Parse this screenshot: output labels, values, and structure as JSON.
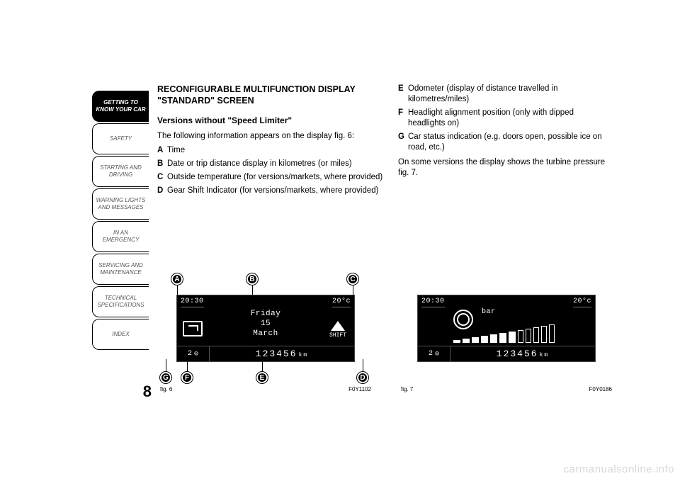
{
  "sidebar": {
    "items": [
      {
        "label": "GETTING TO KNOW YOUR CAR",
        "active": true
      },
      {
        "label": "SAFETY",
        "active": false
      },
      {
        "label": "STARTING AND DRIVING",
        "active": false
      },
      {
        "label": "WARNING LIGHTS AND MESSAGES",
        "active": false
      },
      {
        "label": "IN AN EMERGENCY",
        "active": false
      },
      {
        "label": "SERVICING AND MAINTENANCE",
        "active": false
      },
      {
        "label": "TECHNICAL SPECIFICATIONS",
        "active": false
      },
      {
        "label": "INDEX",
        "active": false
      }
    ]
  },
  "page_number": "8",
  "left": {
    "heading": "RECONFIGURABLE MULTIFUNCTION DISPLAY \"STANDARD\" SCREEN",
    "subheading": "Versions without \"Speed Limiter\"",
    "intro": "The following information appears on the display fig. 6:",
    "items": [
      {
        "letter": "A",
        "text": "Time"
      },
      {
        "letter": "B",
        "text": "Date or trip distance display in kilometres (or miles)"
      },
      {
        "letter": "C",
        "text": "Outside temperature (for versions/markets, where provided)"
      },
      {
        "letter": "D",
        "text": "Gear Shift Indicator (for versions/markets, where provided)"
      }
    ]
  },
  "right": {
    "items": [
      {
        "letter": "E",
        "text": "Odometer (display of distance travelled in kilometres/miles)"
      },
      {
        "letter": "F",
        "text": "Headlight alignment position (only with dipped headlights on)"
      },
      {
        "letter": "G",
        "text": "Car status indication (e.g. doors open, possible ice on road, etc.)"
      }
    ],
    "tail": "On some versions the display shows the turbine pressure fig. 7."
  },
  "fig6": {
    "caption_left": "fig. 6",
    "caption_right": "F0Y1102",
    "display": {
      "time": "20:30",
      "temp": "20°c",
      "day": "Friday",
      "date_num": "15",
      "month": "March",
      "shift_label": "SHIFT",
      "headlight": "2",
      "odo_value": "123456",
      "odo_unit": "km"
    },
    "labels": [
      "A",
      "B",
      "C",
      "D",
      "E",
      "F",
      "G"
    ]
  },
  "fig7": {
    "caption_left": "fig. 7",
    "caption_right": "F0Y0186",
    "display": {
      "time": "20:30",
      "temp": "20°c",
      "bar_label": "bar",
      "headlight": "2",
      "odo_value": "123456",
      "odo_unit": "km",
      "bars": [
        4,
        6,
        8,
        10,
        12,
        14,
        16,
        18,
        20,
        22,
        24,
        26
      ],
      "filled": 7
    }
  },
  "watermark": "carmanualsonline.info",
  "colors": {
    "bg": "#ffffff",
    "text": "#000000",
    "display_bg": "#000000",
    "display_fg": "#ffffff"
  }
}
